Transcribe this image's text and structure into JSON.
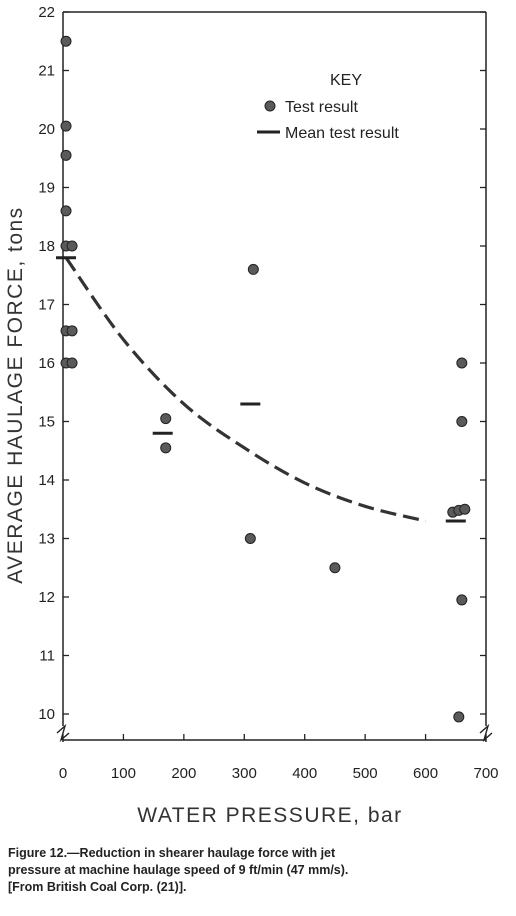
{
  "chart_data": {
    "type": "scatter",
    "xlabel": "WATER PRESSURE, bar",
    "ylabel": "AVERAGE HAULAGE FORCE, tons",
    "xlim": [
      0,
      700
    ],
    "ylim": [
      9.6,
      22
    ],
    "x_ticks": [
      "0",
      "100",
      "200",
      "300",
      "400",
      "500",
      "600",
      "700"
    ],
    "y_ticks": [
      "10",
      "11",
      "12",
      "13",
      "14",
      "15",
      "16",
      "17",
      "18",
      "19",
      "20",
      "21",
      "22"
    ],
    "axis_break_marks": [
      "y-axis",
      "right-axis"
    ],
    "key": {
      "title": "KEY",
      "entries": [
        "Test result",
        "Mean test result"
      ]
    },
    "series": [
      {
        "name": "Test result",
        "marker": "dot",
        "points": [
          [
            5,
            21.5
          ],
          [
            5,
            20.05
          ],
          [
            5,
            19.55
          ],
          [
            5,
            18.6
          ],
          [
            5,
            18.0
          ],
          [
            15,
            18.0
          ],
          [
            5,
            16.55
          ],
          [
            15,
            16.55
          ],
          [
            5,
            16.0
          ],
          [
            15,
            16.0
          ],
          [
            170,
            15.05
          ],
          [
            170,
            14.55
          ],
          [
            315,
            17.6
          ],
          [
            310,
            13.0
          ],
          [
            450,
            12.5
          ],
          [
            660,
            16.0
          ],
          [
            660,
            15.0
          ],
          [
            645,
            13.45
          ],
          [
            655,
            13.48
          ],
          [
            665,
            13.5
          ],
          [
            660,
            11.95
          ],
          [
            655,
            9.95
          ]
        ]
      },
      {
        "name": "Mean test result",
        "marker": "dash",
        "points": [
          [
            5,
            17.8
          ],
          [
            165,
            14.8
          ],
          [
            310,
            15.3
          ],
          [
            650,
            13.3
          ]
        ]
      }
    ],
    "trend_curve": [
      [
        5,
        17.8
      ],
      [
        100,
        16.4
      ],
      [
        200,
        15.3
      ],
      [
        300,
        14.55
      ],
      [
        400,
        13.95
      ],
      [
        500,
        13.55
      ],
      [
        600,
        13.3
      ]
    ],
    "colors": {
      "ink": "#222222",
      "dot_fill": "#5a5a5a",
      "curve": "#333333"
    }
  },
  "caption": {
    "line1": "Figure 12.—Reduction in shearer haulage force with jet",
    "line2": "pressure at machine haulage speed of 9 ft/min (47 mm/s).",
    "line3": "[From British Coal Corp. (21)]."
  }
}
